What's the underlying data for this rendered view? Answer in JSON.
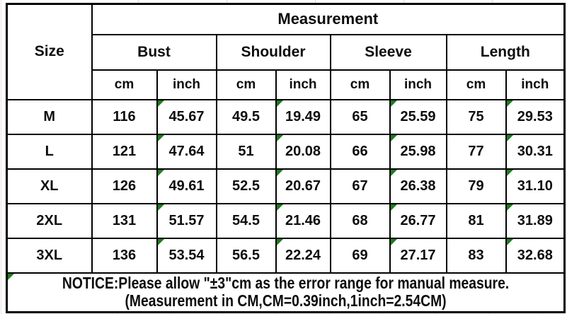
{
  "chart_data": {
    "type": "table",
    "title": "Measurement",
    "row_header": "Size",
    "column_groups": [
      {
        "label": "Bust"
      },
      {
        "label": "Shoulder"
      },
      {
        "label": "Sleeve"
      },
      {
        "label": "Length"
      }
    ],
    "unit_headers": [
      "cm",
      "inch"
    ],
    "rows": [
      {
        "size": "M",
        "values": [
          "116",
          "45.67",
          "49.5",
          "19.49",
          "65",
          "25.59",
          "75",
          "29.53"
        ]
      },
      {
        "size": "L",
        "values": [
          "121",
          "47.64",
          "51",
          "20.08",
          "66",
          "25.98",
          "77",
          "30.31"
        ]
      },
      {
        "size": "XL",
        "values": [
          "126",
          "49.61",
          "52.5",
          "20.67",
          "67",
          "26.38",
          "79",
          "31.10"
        ]
      },
      {
        "size": "2XL",
        "values": [
          "131",
          "51.57",
          "54.5",
          "21.46",
          "68",
          "26.77",
          "81",
          "31.89"
        ]
      },
      {
        "size": "3XL",
        "values": [
          "136",
          "53.54",
          "56.5",
          "22.24",
          "69",
          "27.17",
          "83",
          "32.68"
        ]
      }
    ],
    "error_marker_value_indexes": [
      1,
      3,
      5,
      7
    ],
    "notice_has_marker": true,
    "notice_line1": "NOTICE:Please allow \"±3\"cm as the error range for manual measure.",
    "notice_line2": "(Measurement in CM,CM=0.39inch,1inch=2.54CM)"
  },
  "colors": {
    "background": "#ffffff",
    "border": "#000000",
    "text": "#0d0d0d",
    "error_marker": "#1d7d1d",
    "outer_gridline": "#dcdcdc"
  }
}
